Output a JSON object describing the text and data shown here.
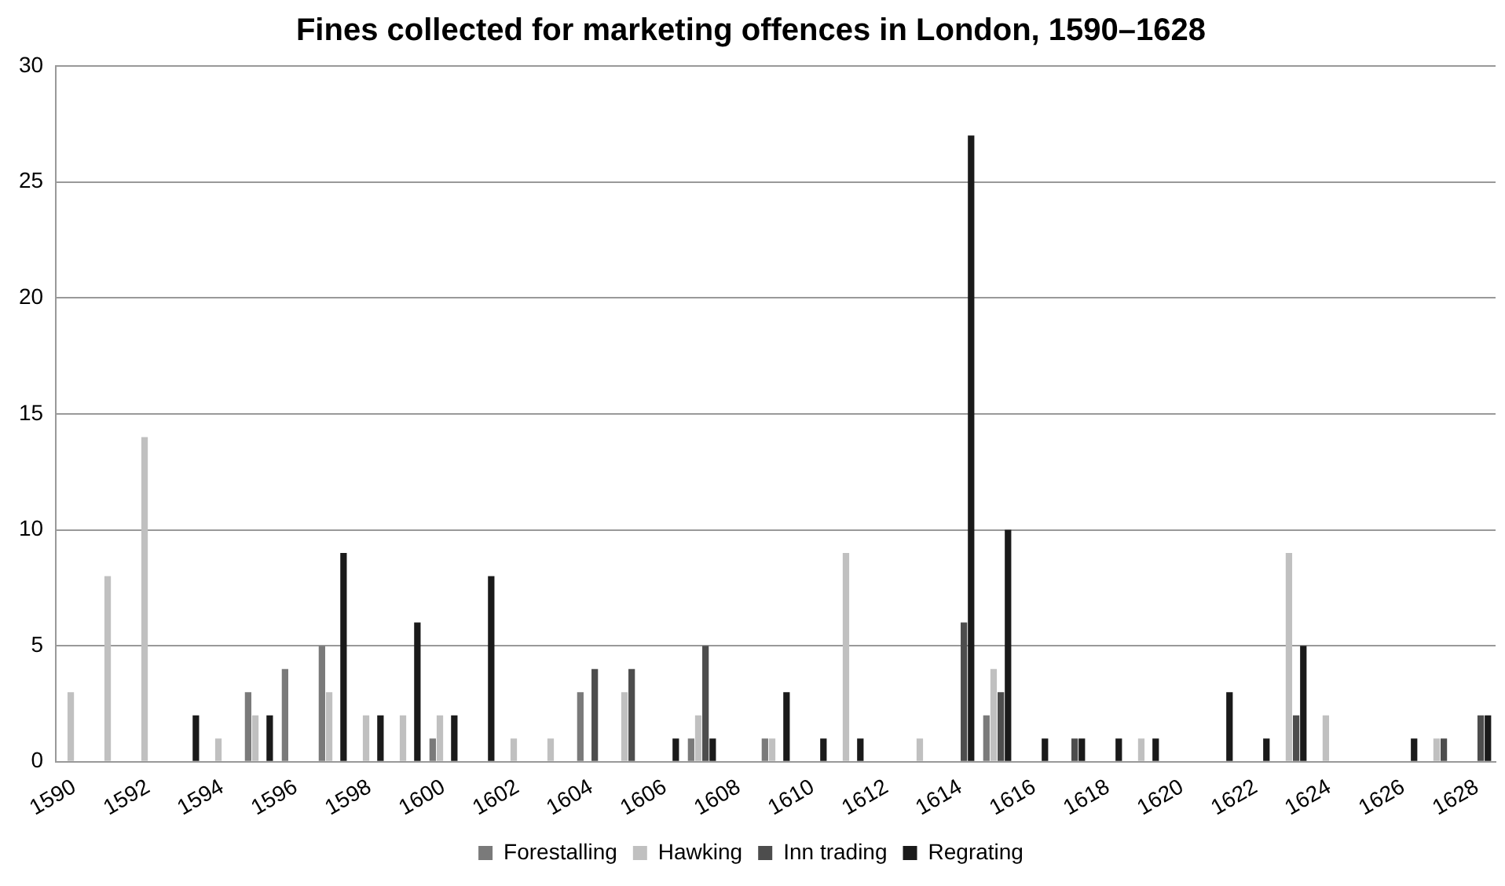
{
  "chart_data": {
    "type": "bar",
    "title": "Fines collected for marketing offences in London, 1590–1628",
    "categories": [
      "1590",
      null,
      "1592",
      null,
      "1594",
      null,
      "1596",
      null,
      "1598",
      null,
      "1600",
      null,
      "1602",
      null,
      "1604",
      null,
      "1606",
      null,
      "1608",
      null,
      "1610",
      null,
      "1612",
      null,
      "1614",
      null,
      "1616",
      null,
      "1618",
      null,
      "1620",
      null,
      "1622",
      null,
      "1624",
      null,
      "1626",
      null,
      "1628"
    ],
    "series": [
      {
        "name": "Forestalling",
        "color": "#7a7a7a",
        "values": [
          0,
          0,
          0,
          0,
          0,
          3,
          4,
          5,
          0,
          0,
          1,
          0,
          0,
          0,
          3,
          0,
          0,
          1,
          0,
          1,
          0,
          0,
          0,
          0,
          0,
          2,
          0,
          0,
          0,
          0,
          0,
          0,
          0,
          0,
          0,
          0,
          0,
          0,
          0
        ]
      },
      {
        "name": "Hawking",
        "color": "#c0c0c0",
        "values": [
          3,
          8,
          14,
          0,
          1,
          2,
          0,
          3,
          2,
          2,
          2,
          0,
          1,
          1,
          0,
          3,
          0,
          2,
          0,
          1,
          0,
          9,
          0,
          1,
          0,
          4,
          0,
          0,
          0,
          1,
          0,
          0,
          0,
          9,
          2,
          0,
          0,
          1,
          0
        ]
      },
      {
        "name": "Inn trading",
        "color": "#4d4d4d",
        "values": [
          0,
          0,
          0,
          0,
          0,
          0,
          0,
          0,
          0,
          0,
          0,
          0,
          0,
          0,
          4,
          4,
          0,
          5,
          0,
          0,
          0,
          0,
          0,
          0,
          6,
          3,
          0,
          1,
          0,
          0,
          0,
          0,
          0,
          2,
          0,
          0,
          0,
          1,
          2
        ]
      },
      {
        "name": "Regrating",
        "color": "#1a1a1a",
        "values": [
          0,
          0,
          0,
          2,
          0,
          2,
          0,
          9,
          2,
          6,
          2,
          8,
          0,
          0,
          0,
          0,
          1,
          1,
          0,
          3,
          1,
          1,
          0,
          0,
          27,
          10,
          1,
          1,
          1,
          1,
          0,
          3,
          1,
          5,
          0,
          0,
          1,
          0,
          2
        ]
      }
    ],
    "ylim": [
      0,
      30
    ],
    "yticks": [
      0,
      5,
      10,
      15,
      20,
      25,
      30
    ],
    "grid": "y",
    "legend": "bottom"
  }
}
